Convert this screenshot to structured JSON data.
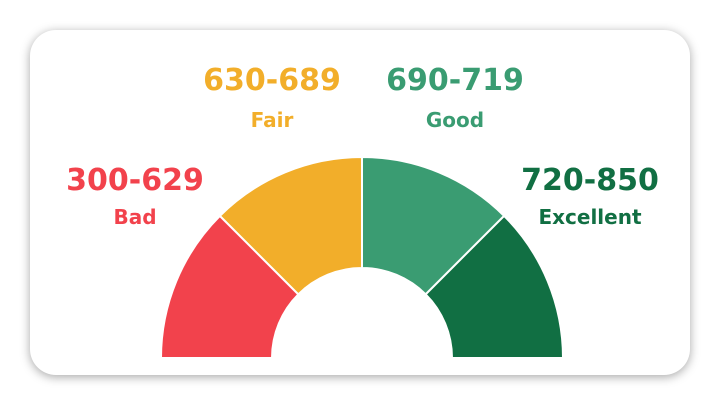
{
  "segments": [
    {
      "range": "300-629",
      "label": "Bad",
      "color": "#f2424c"
    },
    {
      "range": "630-689",
      "label": "Fair",
      "color": "#f2ae2a"
    },
    {
      "range": "690-719",
      "label": "Good",
      "color": "#3a9c72"
    },
    {
      "range": "720-850",
      "label": "Excellent",
      "color": "#116f43"
    }
  ]
}
